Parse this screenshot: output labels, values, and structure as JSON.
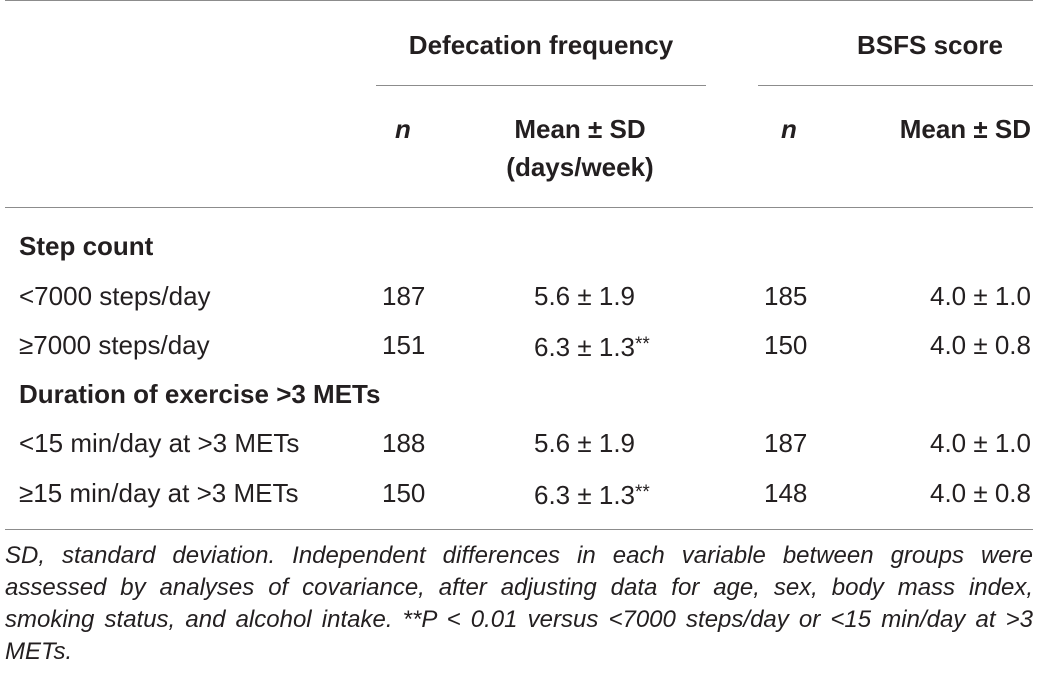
{
  "header": {
    "group1": "Defecation frequency",
    "group2": "BSFS score",
    "n1": "n",
    "mean1_line1": "Mean ± SD",
    "mean1_line2": "(days/week)",
    "n2": "n",
    "mean2": "Mean ± SD"
  },
  "sections": [
    {
      "title": "Step count",
      "rows": [
        {
          "label": "<7000 steps/day",
          "n1": "187",
          "m1": "5.6 ± 1.9",
          "sig1": "",
          "n2": "185",
          "m2": "4.0 ± 1.0"
        },
        {
          "label": "≥7000 steps/day",
          "n1": "151",
          "m1": "6.3 ± 1.3",
          "sig1": "**",
          "n2": "150",
          "m2": "4.0 ± 0.8"
        }
      ]
    },
    {
      "title": "Duration of exercise >3 METs",
      "rows": [
        {
          "label": "<15 min/day at >3 METs",
          "n1": "188",
          "m1": "5.6 ± 1.9",
          "sig1": "",
          "n2": "187",
          "m2": "4.0 ± 1.0"
        },
        {
          "label": "≥15 min/day at >3 METs",
          "n1": "150",
          "m1": "6.3 ± 1.3",
          "sig1": "**",
          "n2": "148",
          "m2": "4.0 ± 0.8"
        }
      ]
    }
  ],
  "footnote": "SD, standard deviation. Independent differences in each variable between groups were assessed by analyses of covariance, after adjusting data for age, sex, body mass index, smoking status, and alcohol intake. **P < 0.01 versus <7000 steps/day or <15 min/day at >3 METs."
}
